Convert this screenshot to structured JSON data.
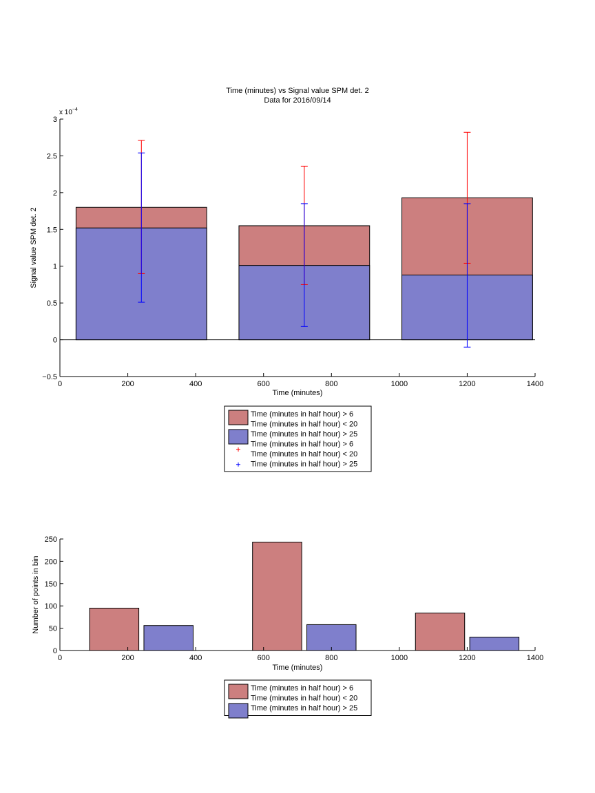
{
  "colors": {
    "red_fill": "#cc7f7f",
    "blue_fill": "#7f7fcc",
    "red_err": "#ff0000",
    "blue_err": "#0000ff",
    "axis": "#000000"
  },
  "legend_top": {
    "entries": [
      {
        "kind": "patch",
        "color": "red",
        "lines": [
          "Time (minutes in half hour) > 6",
          "Time (minutes in half hour) < 20"
        ]
      },
      {
        "kind": "patch",
        "color": "blue",
        "lines": [
          "Time (minutes in half hour) > 25"
        ]
      },
      {
        "kind": "marker",
        "color": "red",
        "lines": [
          "Time (minutes in half hour) > 6",
          "Time (minutes in half hour) < 20"
        ]
      },
      {
        "kind": "marker",
        "color": "blue",
        "lines": [
          "Time (minutes in half hour) > 25"
        ]
      }
    ]
  },
  "legend_bottom": {
    "entries": [
      {
        "kind": "patch",
        "color": "red",
        "lines": [
          "Time (minutes in half hour) > 6",
          "Time (minutes in half hour) < 20"
        ]
      },
      {
        "kind": "patch",
        "color": "blue",
        "lines": [
          "Time (minutes in half hour) > 25"
        ]
      }
    ]
  },
  "chart_data": [
    {
      "type": "bar",
      "title": "Time (minutes) vs Signal value SPM det. 2",
      "subtitle": "Data for 2016/09/14",
      "xlabel": "Time (minutes)",
      "ylabel": "Signal value SPM det. 2",
      "exponent_label": "x 10",
      "exponent_power": "−4",
      "xlim": [
        0,
        1400
      ],
      "ylim": [
        -0.5,
        3
      ],
      "xticks": [
        "0",
        "200",
        "400",
        "600",
        "800",
        "1000",
        "1200",
        "1400"
      ],
      "yticks": [
        "−0.5",
        "0",
        "0.5",
        "1",
        "1.5",
        "2",
        "2.5",
        "3"
      ],
      "xtick_values": [
        0,
        200,
        400,
        600,
        800,
        1000,
        1200,
        1400
      ],
      "ytick_values": [
        -0.5,
        0,
        0.5,
        1,
        1.5,
        2,
        2.5,
        3
      ],
      "bar_width": 385,
      "grid": false,
      "legend": "below",
      "series": [
        {
          "color": "red",
          "x": [
            240,
            720,
            1200
          ],
          "values": [
            1.8,
            1.55,
            1.93
          ],
          "err_low": [
            0.9,
            0.75,
            1.04
          ],
          "err_high": [
            2.71,
            2.36,
            2.82
          ]
        },
        {
          "color": "blue",
          "x": [
            240,
            720,
            1200
          ],
          "values": [
            1.52,
            1.01,
            0.88
          ],
          "err_low": [
            0.51,
            0.18,
            -0.1
          ],
          "err_high": [
            2.54,
            1.85,
            1.85
          ]
        }
      ]
    },
    {
      "type": "bar",
      "title": "",
      "xlabel": "Time (minutes)",
      "ylabel": "Number of points in bin",
      "xlim": [
        0,
        1400
      ],
      "ylim": [
        0,
        250
      ],
      "xticks": [
        "0",
        "200",
        "400",
        "600",
        "800",
        "1000",
        "1200",
        "1400"
      ],
      "yticks": [
        "0",
        "50",
        "100",
        "150",
        "200",
        "250"
      ],
      "xtick_values": [
        0,
        200,
        400,
        600,
        800,
        1000,
        1200,
        1400
      ],
      "ytick_values": [
        0,
        50,
        100,
        150,
        200,
        250
      ],
      "bar_width": 145,
      "grid": false,
      "legend": "below",
      "series": [
        {
          "color": "red",
          "x": [
            160,
            640,
            1120
          ],
          "values": [
            95,
            243,
            84
          ]
        },
        {
          "color": "blue",
          "x": [
            320,
            800,
            1280
          ],
          "values": [
            56,
            58,
            30
          ]
        }
      ]
    }
  ]
}
